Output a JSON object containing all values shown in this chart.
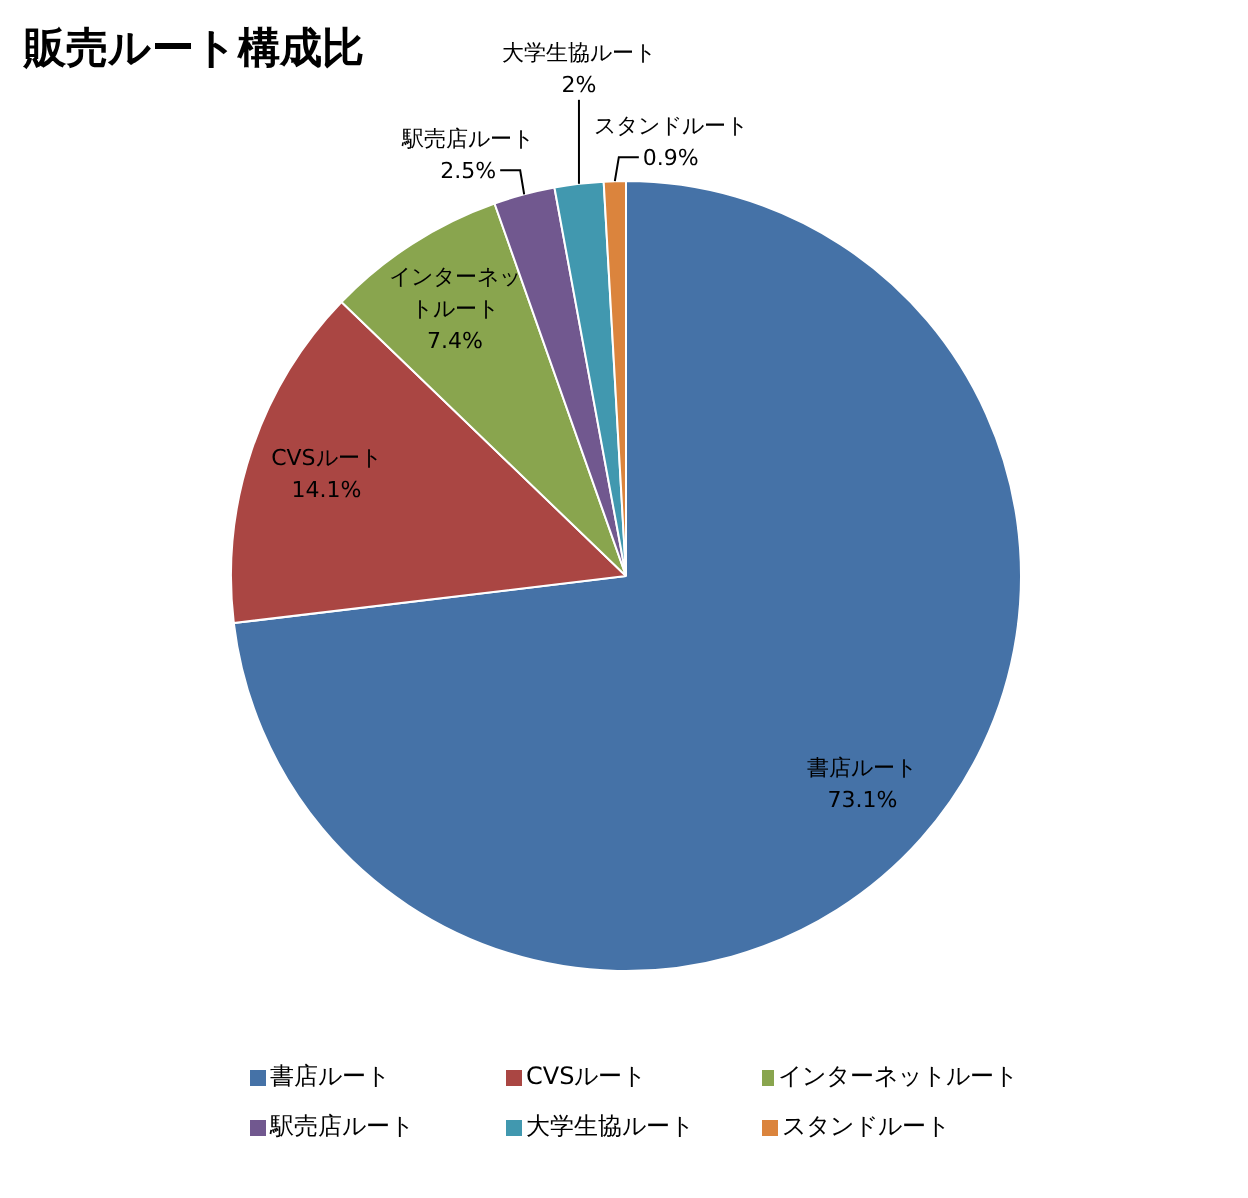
{
  "chart_data": {
    "type": "pie",
    "title": "販売ルート構成比",
    "categories": [
      "書店ルート",
      "CVSルート",
      "インターネットルート",
      "駅売店ルート",
      "大学生協ルート",
      "スタンドルート"
    ],
    "values": [
      73.1,
      14.1,
      7.4,
      2.5,
      2,
      0.9
    ],
    "colors": [
      "#4572a7",
      "#aa4643",
      "#89a54e",
      "#71588f",
      "#4198af",
      "#db843d"
    ],
    "value_labels": [
      "73.1%",
      "14.1%",
      "7.4%",
      "2.5%",
      "2%",
      "0.9%"
    ],
    "legend": "bottom"
  }
}
